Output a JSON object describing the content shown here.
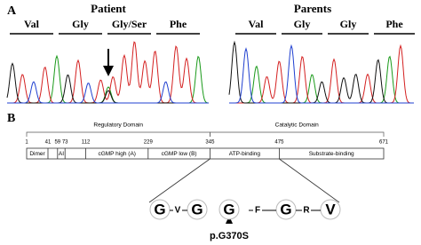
{
  "panel_a": {
    "label": "A",
    "patient": {
      "title": "Patient",
      "codons": [
        "Val",
        "Gly",
        "Gly/Ser",
        "Phe"
      ]
    },
    "parents": {
      "title": "Parents",
      "codons": [
        "Val",
        "Gly",
        "Gly",
        "Phe"
      ]
    }
  },
  "panel_b": {
    "label": "B",
    "domains": [
      "Regulatory Domain",
      "Catalytic Domain"
    ],
    "positions": [
      1,
      41,
      59,
      73,
      112,
      229,
      345,
      475,
      671
    ],
    "segments": [
      "Dimer",
      "AI",
      "cGMP high (A)",
      "cGMP low (B)",
      "ATP-binding",
      "Substrate-binding"
    ],
    "sequence": [
      "G",
      "V",
      "G",
      "G",
      "F",
      "G",
      "R",
      "V"
    ],
    "mutation": "p.G370S"
  }
}
